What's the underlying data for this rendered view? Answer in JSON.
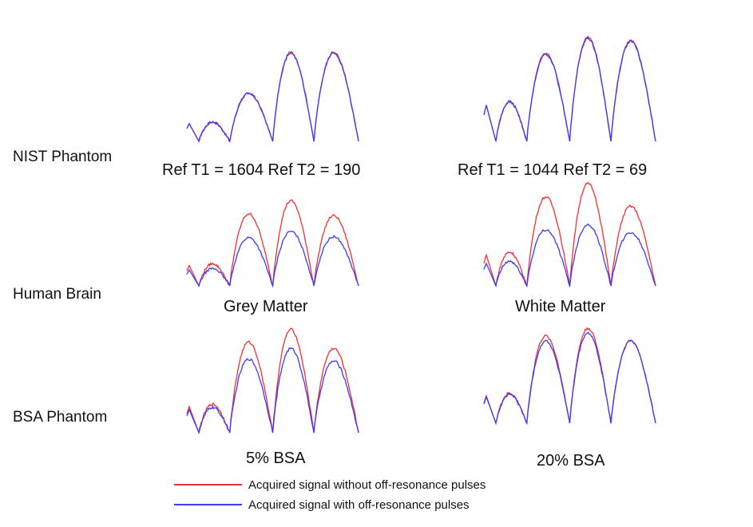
{
  "row_labels": {
    "nist": "NIST Phantom",
    "brain": "Human Brain",
    "bsa": "BSA Phantom"
  },
  "captions": {
    "left_top": "Ref T1 = 1604   Ref T2 = 190",
    "right_top": "Ref T1 = 1044   Ref T2 = 69",
    "left_mid": "Grey Matter",
    "right_mid": "White Matter",
    "left_bot": "5% BSA",
    "right_bot": "20% BSA"
  },
  "legend": {
    "red": "Acquired signal without off-resonance pulses",
    "blue": "Acquired signal with off-resonance pulses"
  },
  "colors": {
    "red": "#f03030",
    "blue": "#3a3aff"
  },
  "chart_data": [
    {
      "type": "line",
      "panel": "nist-left",
      "series": [
        {
          "name": "Acquired signal without off-resonance pulses",
          "values": [
            0.35,
            0.52,
            0.97,
            0.97
          ]
        },
        {
          "name": "Acquired signal with off-resonance pulses",
          "values": [
            0.35,
            0.52,
            0.96,
            0.96
          ]
        }
      ]
    },
    {
      "type": "line",
      "panel": "nist-right",
      "series": [
        {
          "name": "Acquired signal without off-resonance pulses",
          "values": [
            0.62,
            0.83,
            0.98,
            0.95
          ]
        },
        {
          "name": "Acquired signal with off-resonance pulses",
          "values": [
            0.62,
            0.82,
            0.97,
            0.94
          ]
        }
      ]
    },
    {
      "type": "line",
      "panel": "brain-left",
      "series": [
        {
          "name": "Acquired signal without off-resonance pulses",
          "values": [
            0.42,
            0.82,
            0.97,
            0.8
          ]
        },
        {
          "name": "Acquired signal with off-resonance pulses",
          "values": [
            0.33,
            0.55,
            0.62,
            0.56
          ]
        }
      ]
    },
    {
      "type": "line",
      "panel": "brain-right",
      "series": [
        {
          "name": "Acquired signal without off-resonance pulses",
          "values": [
            0.55,
            0.87,
            1.0,
            0.78
          ]
        },
        {
          "name": "Acquired signal with off-resonance pulses",
          "values": [
            0.4,
            0.55,
            0.6,
            0.52
          ]
        }
      ]
    },
    {
      "type": "line",
      "panel": "bsa-left",
      "series": [
        {
          "name": "Acquired signal without off-resonance pulses",
          "values": [
            0.45,
            0.86,
            0.98,
            0.8
          ]
        },
        {
          "name": "Acquired signal with off-resonance pulses",
          "values": [
            0.4,
            0.7,
            0.8,
            0.68
          ]
        }
      ]
    },
    {
      "type": "line",
      "panel": "bsa-right",
      "series": [
        {
          "name": "Acquired signal without off-resonance pulses",
          "values": [
            0.52,
            0.91,
            0.99,
            0.86
          ]
        },
        {
          "name": "Acquired signal with off-resonance pulses",
          "values": [
            0.5,
            0.86,
            0.94,
            0.86
          ]
        }
      ]
    }
  ]
}
